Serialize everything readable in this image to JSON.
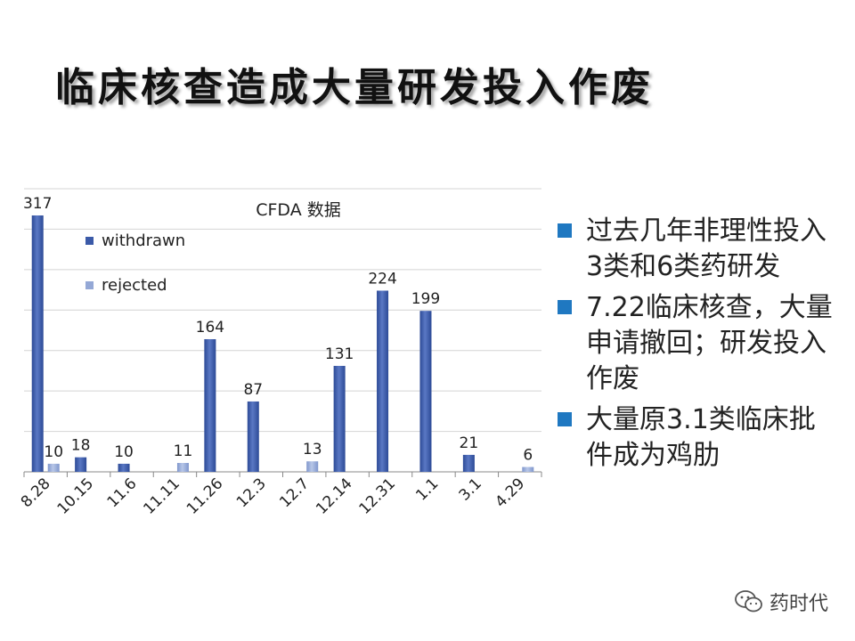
{
  "title": "临床核查造成大量研发投入作废",
  "chart_data": {
    "type": "bar",
    "title": "CFDA 数据",
    "categories": [
      "8.28",
      "10.15",
      "11.6",
      "11.11",
      "11.26",
      "12.3",
      "12.7",
      "12.14",
      "12.31",
      "1.1",
      "3.1",
      "4.29"
    ],
    "series": [
      {
        "name": "withdrawn",
        "color": "#3b5aa8",
        "values": [
          317,
          18,
          10,
          null,
          164,
          87,
          null,
          131,
          224,
          199,
          21,
          null
        ]
      },
      {
        "name": "rejected",
        "color": "#94a8d6",
        "values": [
          10,
          null,
          null,
          11,
          null,
          null,
          13,
          null,
          null,
          null,
          null,
          6
        ]
      }
    ],
    "data_labels": [
      "317",
      "10",
      "18",
      "10",
      "11",
      "164",
      "87",
      "13",
      "131",
      "224",
      "199",
      "21",
      "6"
    ],
    "ylim": [
      0,
      350
    ],
    "grid": true,
    "legend": "top-left"
  },
  "bullets": [
    "过去几年非理性投入3类和6类药研发",
    "7.22临床核查，大量申请撤回；研发投入作废",
    "大量原3.1类临床批件成为鸡肋"
  ],
  "watermark": "药时代",
  "colors": {
    "bullet": "#1f78c1",
    "withdrawn": "#3b5aa8",
    "rejected": "#94a8d6"
  }
}
